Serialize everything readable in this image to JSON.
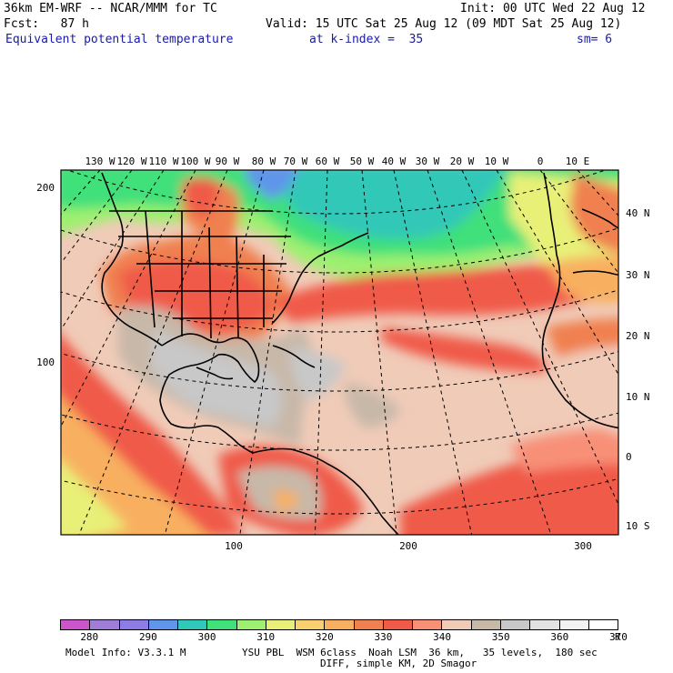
{
  "header": {
    "model": "36km EM-WRF -- NCAR/MMM for TC",
    "init": "Init: 00 UTC Wed 22 Aug 12",
    "fcst": "Fcst:   87 h",
    "valid": "Valid: 15 UTC Sat 25 Aug 12 (09 MDT Sat 25 Aug 12)",
    "field": "Equivalent potential temperature",
    "kindex": "at k-index =  35",
    "smooth": "sm= 6"
  },
  "map": {
    "top_lon_labels": [
      "130 W",
      "120 W",
      "110 W",
      "100 W",
      "90 W",
      "80 W",
      "70 W",
      "60 W",
      "50 W",
      "40 W",
      "30 W",
      "20 W",
      "10 W",
      "0",
      "10 E"
    ],
    "right_lat_labels": [
      "40 N",
      "30 N",
      "20 N",
      "10 N",
      "0",
      "10 S"
    ],
    "left_grid_labels": [
      "200",
      "100"
    ],
    "bottom_grid_labels": [
      "100",
      "200",
      "300"
    ]
  },
  "colorbar": {
    "colors": [
      "#cc55cc",
      "#a07ed8",
      "#8b7ce6",
      "#5f95ea",
      "#30c8b8",
      "#40e07a",
      "#9ef070",
      "#e8f078",
      "#f8d070",
      "#f8b060",
      "#f08050",
      "#f05a48",
      "#f89078",
      "#f0cbb8",
      "#c8b8a8",
      "#c8c8c8",
      "#e2e2e2",
      "#f2f2f2",
      "#ffffff"
    ],
    "labels": [
      "280",
      "290",
      "300",
      "310",
      "320",
      "330",
      "340",
      "350",
      "360",
      "370"
    ],
    "unit": "K"
  },
  "footer": {
    "line1_left": "Model Info: V3.3.1 M",
    "line1_right": "YSU PBL  WSM 6class  Noah LSM  36 km,   35 levels,  180 sec",
    "line2": "DIFF, simple KM, 2D Smagor"
  }
}
